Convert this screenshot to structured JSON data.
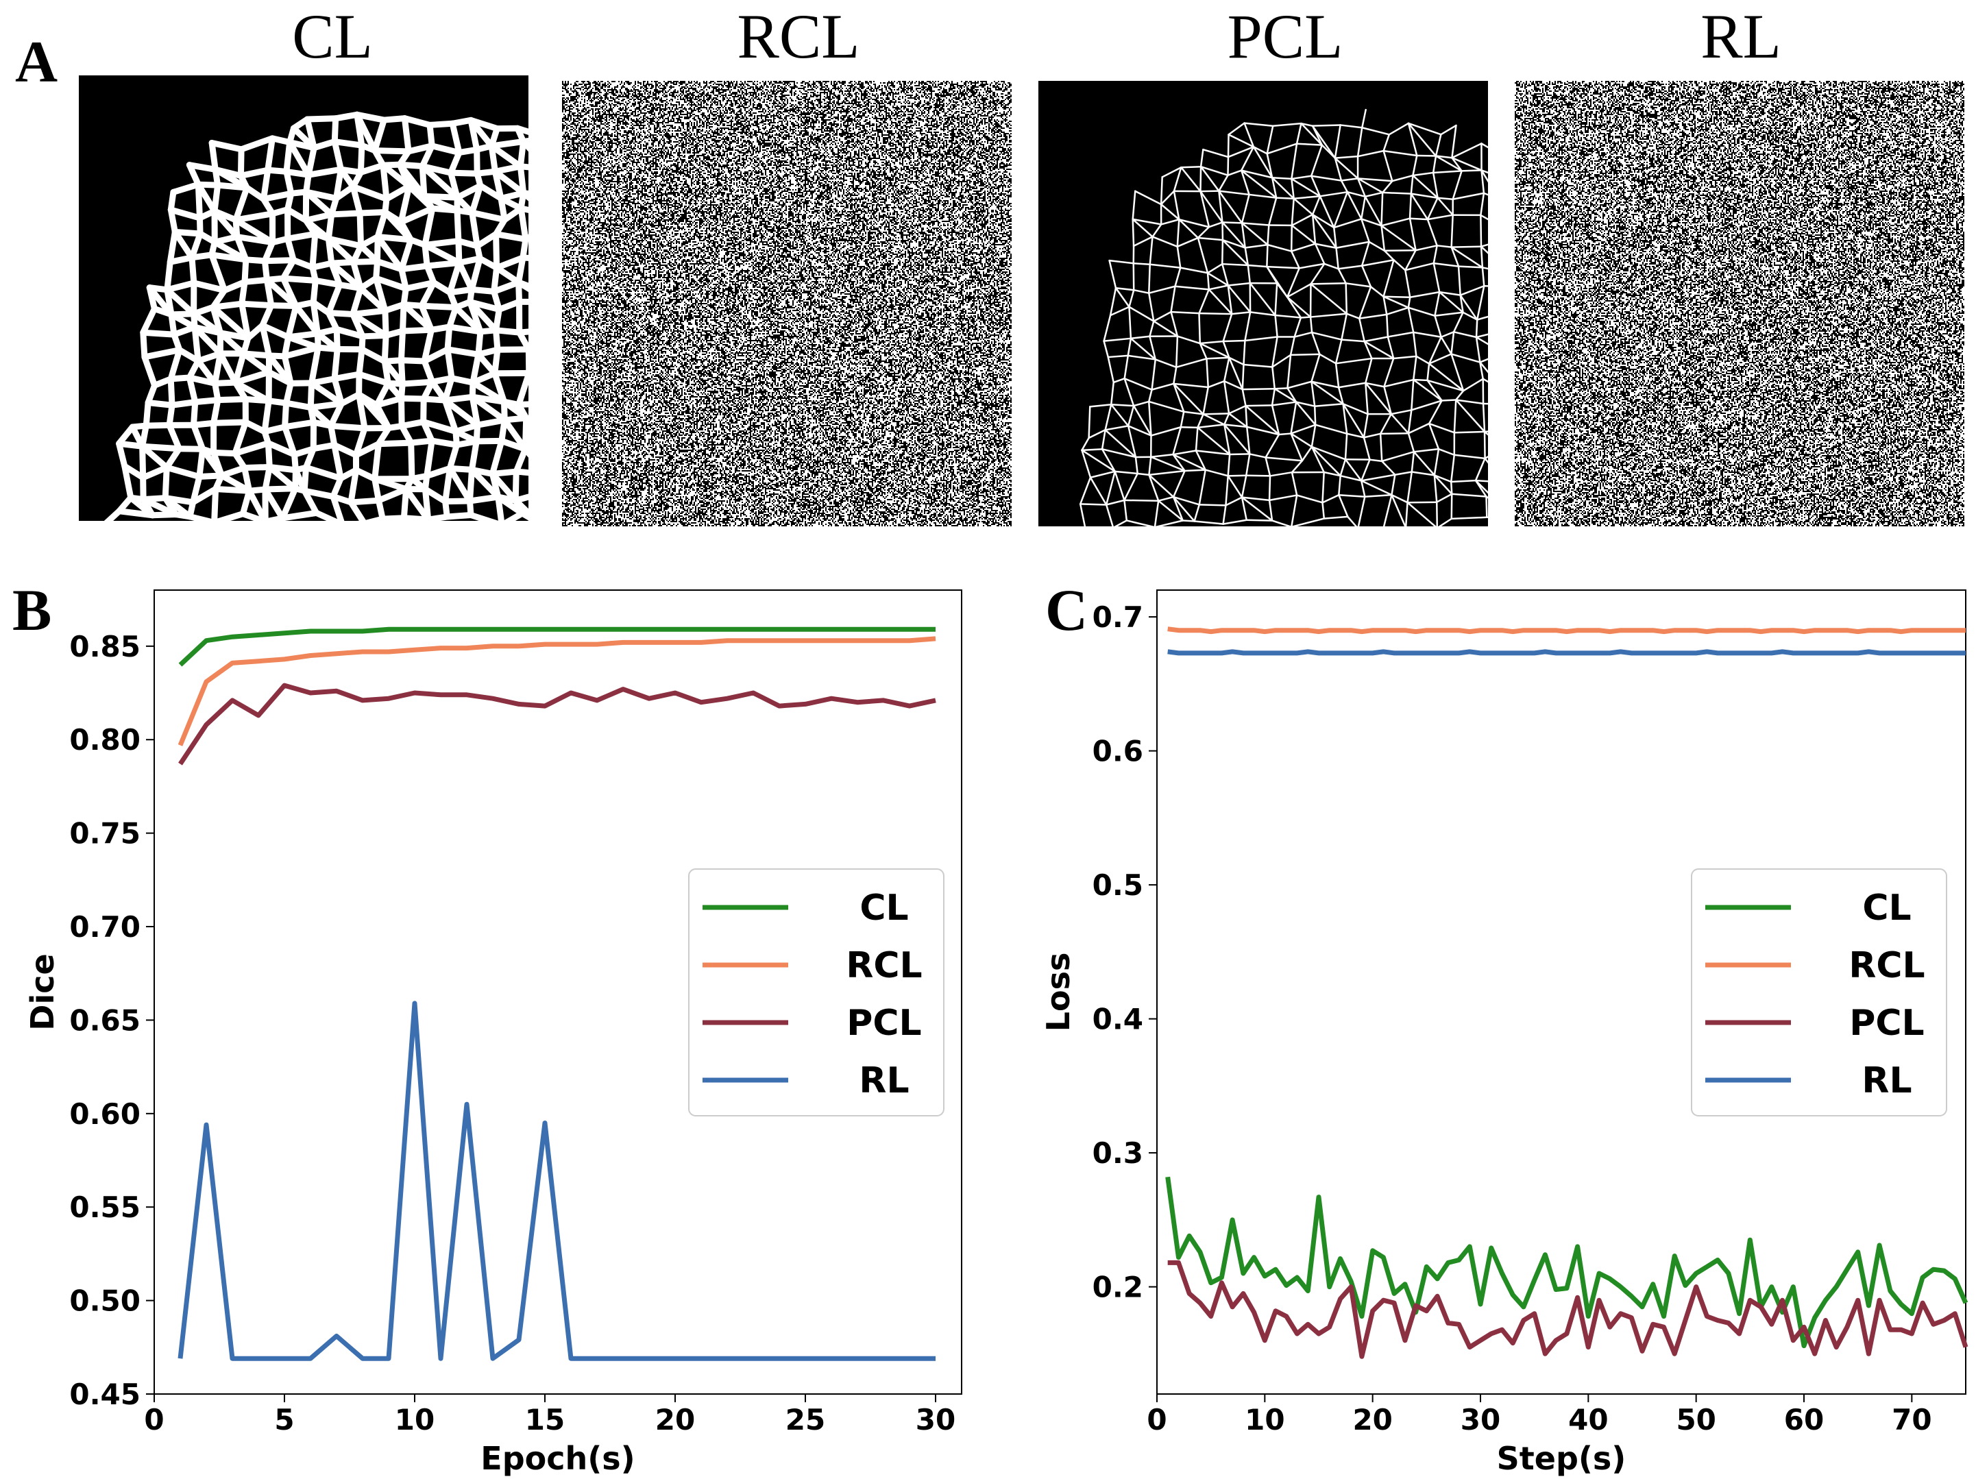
{
  "panel_a": {
    "letter": "A",
    "images": [
      {
        "title": "CL",
        "pattern": "thick-mesh"
      },
      {
        "title": "RCL",
        "pattern": "random-noise"
      },
      {
        "title": "PCL",
        "pattern": "thin-mesh"
      },
      {
        "title": "RL",
        "pattern": "random-noise"
      }
    ]
  },
  "colors": {
    "CL": "#228b22",
    "RCL": "#f0855a",
    "PCL": "#8b3040",
    "RL": "#3c6fb0"
  },
  "chart_data": [
    {
      "letter": "B",
      "type": "line",
      "xlabel": "Epoch(s)",
      "ylabel": "Dice",
      "xlim": [
        0,
        31
      ],
      "ylim": [
        0.45,
        0.88
      ],
      "xticks": [
        0,
        5,
        10,
        15,
        20,
        25,
        30
      ],
      "yticks": [
        0.45,
        0.5,
        0.55,
        0.6,
        0.65,
        0.7,
        0.75,
        0.8,
        0.85
      ],
      "legend_position": "center-right",
      "x": [
        1,
        2,
        3,
        4,
        5,
        6,
        7,
        8,
        9,
        10,
        11,
        12,
        13,
        14,
        15,
        16,
        17,
        18,
        19,
        20,
        21,
        22,
        23,
        24,
        25,
        26,
        27,
        28,
        29,
        30
      ],
      "series": [
        {
          "name": "CL",
          "values": [
            0.84,
            0.853,
            0.855,
            0.856,
            0.857,
            0.858,
            0.858,
            0.858,
            0.859,
            0.859,
            0.859,
            0.859,
            0.859,
            0.859,
            0.859,
            0.859,
            0.859,
            0.859,
            0.859,
            0.859,
            0.859,
            0.859,
            0.859,
            0.859,
            0.859,
            0.859,
            0.859,
            0.859,
            0.859,
            0.859
          ]
        },
        {
          "name": "RCL",
          "values": [
            0.797,
            0.831,
            0.841,
            0.842,
            0.843,
            0.845,
            0.846,
            0.847,
            0.847,
            0.848,
            0.849,
            0.849,
            0.85,
            0.85,
            0.851,
            0.851,
            0.851,
            0.852,
            0.852,
            0.852,
            0.852,
            0.853,
            0.853,
            0.853,
            0.853,
            0.853,
            0.853,
            0.853,
            0.853,
            0.854
          ]
        },
        {
          "name": "PCL",
          "values": [
            0.787,
            0.808,
            0.821,
            0.813,
            0.829,
            0.825,
            0.826,
            0.821,
            0.822,
            0.825,
            0.824,
            0.824,
            0.822,
            0.819,
            0.818,
            0.825,
            0.821,
            0.827,
            0.822,
            0.825,
            0.82,
            0.822,
            0.825,
            0.818,
            0.819,
            0.822,
            0.82,
            0.821,
            0.818,
            0.821
          ]
        },
        {
          "name": "RL",
          "values": [
            0.469,
            0.594,
            0.469,
            0.469,
            0.469,
            0.469,
            0.481,
            0.469,
            0.469,
            0.659,
            0.469,
            0.605,
            0.469,
            0.479,
            0.595,
            0.469,
            0.469,
            0.469,
            0.469,
            0.469,
            0.469,
            0.469,
            0.469,
            0.469,
            0.469,
            0.469,
            0.469,
            0.469,
            0.469,
            0.469
          ]
        }
      ]
    },
    {
      "letter": "C",
      "type": "line",
      "xlabel": "Step(s)",
      "ylabel": "Loss",
      "xlim": [
        0,
        75
      ],
      "ylim": [
        0.12,
        0.72
      ],
      "xticks": [
        0,
        10,
        20,
        30,
        40,
        50,
        60,
        70
      ],
      "yticks": [
        0.2,
        0.3,
        0.4,
        0.5,
        0.6,
        0.7
      ],
      "legend_position": "center-right",
      "x_start": 1,
      "series": [
        {
          "name": "CL",
          "values": [
            0.282,
            0.222,
            0.238,
            0.226,
            0.203,
            0.207,
            0.25,
            0.21,
            0.222,
            0.208,
            0.213,
            0.201,
            0.207,
            0.197,
            0.267,
            0.2,
            0.221,
            0.204,
            0.178,
            0.227,
            0.222,
            0.195,
            0.202,
            0.181,
            0.215,
            0.206,
            0.218,
            0.22,
            0.23,
            0.187,
            0.229,
            0.21,
            0.194,
            0.185,
            0.205,
            0.224,
            0.198,
            0.199,
            0.23,
            0.178,
            0.21,
            0.206,
            0.2,
            0.193,
            0.185,
            0.202,
            0.178,
            0.223,
            0.201,
            0.21,
            0.215,
            0.22,
            0.21,
            0.18,
            0.235,
            0.185,
            0.2,
            0.181,
            0.2,
            0.156,
            0.177,
            0.19,
            0.2,
            0.213,
            0.226,
            0.186,
            0.231,
            0.197,
            0.187,
            0.18,
            0.207,
            0.213,
            0.212,
            0.206,
            0.188
          ]
        },
        {
          "name": "RCL",
          "values": [
            0.691,
            0.69,
            0.69,
            0.69,
            0.689,
            0.69,
            0.69,
            0.69,
            0.69,
            0.689,
            0.69,
            0.69,
            0.69,
            0.69,
            0.689,
            0.69,
            0.69,
            0.69,
            0.689,
            0.69,
            0.69,
            0.69,
            0.69,
            0.689,
            0.69,
            0.69,
            0.69,
            0.69,
            0.689,
            0.69,
            0.69,
            0.69,
            0.689,
            0.69,
            0.69,
            0.69,
            0.69,
            0.689,
            0.69,
            0.69,
            0.69,
            0.689,
            0.69,
            0.69,
            0.69,
            0.69,
            0.689,
            0.69,
            0.69,
            0.69,
            0.689,
            0.69,
            0.69,
            0.69,
            0.69,
            0.689,
            0.69,
            0.69,
            0.69,
            0.689,
            0.69,
            0.69,
            0.69,
            0.69,
            0.689,
            0.69,
            0.69,
            0.69,
            0.689,
            0.69,
            0.69,
            0.69,
            0.69,
            0.69,
            0.69
          ]
        },
        {
          "name": "PCL",
          "values": [
            0.218,
            0.218,
            0.195,
            0.188,
            0.178,
            0.203,
            0.185,
            0.195,
            0.181,
            0.16,
            0.182,
            0.178,
            0.165,
            0.172,
            0.165,
            0.17,
            0.191,
            0.2,
            0.148,
            0.182,
            0.19,
            0.188,
            0.16,
            0.186,
            0.182,
            0.193,
            0.173,
            0.172,
            0.155,
            0.16,
            0.165,
            0.168,
            0.158,
            0.175,
            0.18,
            0.15,
            0.16,
            0.165,
            0.192,
            0.155,
            0.19,
            0.17,
            0.18,
            0.177,
            0.152,
            0.172,
            0.17,
            0.15,
            0.175,
            0.2,
            0.178,
            0.175,
            0.173,
            0.165,
            0.19,
            0.185,
            0.172,
            0.19,
            0.16,
            0.17,
            0.15,
            0.175,
            0.155,
            0.17,
            0.19,
            0.15,
            0.19,
            0.168,
            0.168,
            0.165,
            0.188,
            0.172,
            0.175,
            0.18,
            0.155
          ]
        },
        {
          "name": "RL",
          "values": [
            0.674,
            0.673,
            0.673,
            0.673,
            0.673,
            0.673,
            0.674,
            0.673,
            0.673,
            0.673,
            0.673,
            0.673,
            0.673,
            0.674,
            0.673,
            0.673,
            0.673,
            0.673,
            0.673,
            0.673,
            0.674,
            0.673,
            0.673,
            0.673,
            0.673,
            0.673,
            0.673,
            0.673,
            0.674,
            0.673,
            0.673,
            0.673,
            0.673,
            0.673,
            0.673,
            0.674,
            0.673,
            0.673,
            0.673,
            0.673,
            0.673,
            0.673,
            0.674,
            0.673,
            0.673,
            0.673,
            0.673,
            0.673,
            0.673,
            0.673,
            0.674,
            0.673,
            0.673,
            0.673,
            0.673,
            0.673,
            0.673,
            0.674,
            0.673,
            0.673,
            0.673,
            0.673,
            0.673,
            0.673,
            0.673,
            0.674,
            0.673,
            0.673,
            0.673,
            0.673,
            0.673,
            0.673,
            0.673,
            0.673,
            0.673
          ]
        }
      ]
    }
  ]
}
